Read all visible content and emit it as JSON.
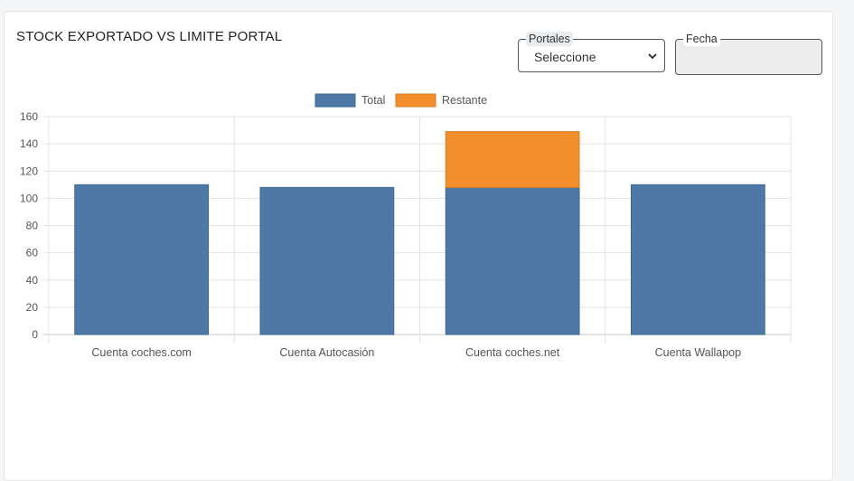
{
  "panel": {
    "title": "STOCK EXPORTADO VS LIMITE PORTAL",
    "portales_label": "Portales",
    "portales_value": "Seleccione",
    "fecha_label": "Fecha",
    "fecha_value": ""
  },
  "chart_data": {
    "type": "bar",
    "stacked": true,
    "title": "",
    "xlabel": "",
    "ylabel": "",
    "categories": [
      "Cuenta coches.com",
      "Cuenta Autocasión",
      "Cuenta coches.net",
      "Cuenta Wallapop"
    ],
    "series": [
      {
        "name": "Total",
        "values": [
          110,
          108,
          108,
          110
        ],
        "color": "#4e79a7"
      },
      {
        "name": "Restante",
        "values": [
          0,
          0,
          41,
          0
        ],
        "color": "#f28e2b"
      }
    ],
    "ylim": [
      0,
      160
    ],
    "yticks": [
      0,
      20,
      40,
      60,
      80,
      100,
      120,
      140,
      160
    ],
    "grid": true,
    "legend_position": "top"
  }
}
